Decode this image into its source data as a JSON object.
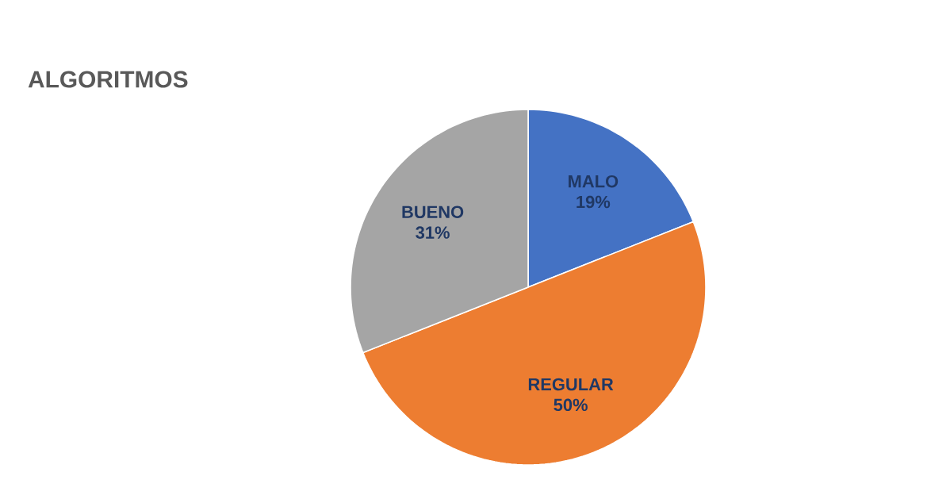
{
  "chart_data": {
    "type": "pie",
    "title": "ALGORITMOS",
    "categories": [
      "MALO",
      "REGULAR",
      "BUENO"
    ],
    "values": [
      19,
      50,
      31
    ],
    "value_labels": [
      "19%",
      "50%",
      "31%"
    ],
    "colors": [
      "#4472c4",
      "#ed7d31",
      "#a5a5a5"
    ]
  }
}
